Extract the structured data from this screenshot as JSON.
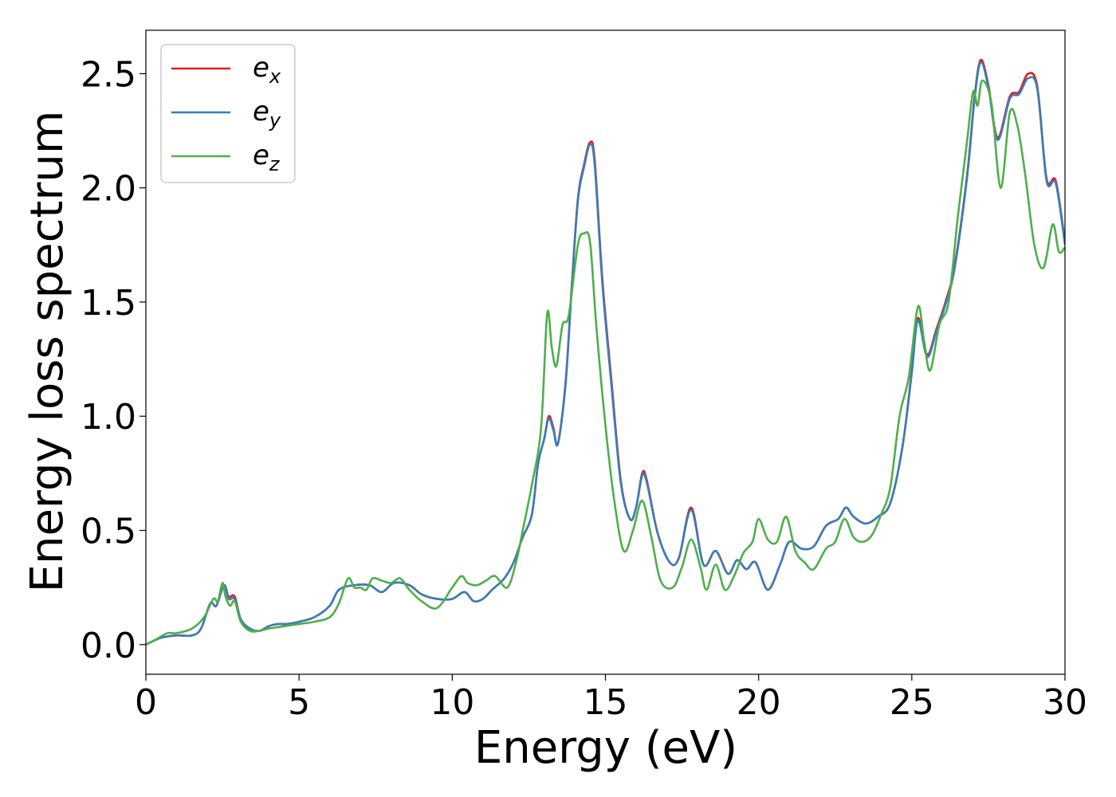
{
  "chart_data": {
    "type": "line",
    "xlabel": "Energy (eV)",
    "ylabel": "Energy loss spectrum",
    "xlim": [
      0,
      30
    ],
    "ylim": [
      -0.13,
      2.69
    ],
    "xticks": [
      0,
      5,
      10,
      15,
      20,
      25,
      30
    ],
    "yticks": [
      0.0,
      0.5,
      1.0,
      1.5,
      2.0,
      2.5
    ],
    "xtick_labels": [
      "0",
      "5",
      "10",
      "15",
      "20",
      "25",
      "30"
    ],
    "ytick_labels": [
      "0.0",
      "0.5",
      "1.0",
      "1.5",
      "2.0",
      "2.5"
    ],
    "grid": false,
    "legend_position": "top-left",
    "series": [
      {
        "name": "e_x",
        "legend_base": "e",
        "legend_sub": "x",
        "color": "#e41a1c",
        "points": [
          [
            0,
            0
          ],
          [
            0.5,
            0.03
          ],
          [
            1,
            0.04
          ],
          [
            1.5,
            0.04
          ],
          [
            1.8,
            0.07
          ],
          [
            2.1,
            0.18
          ],
          [
            2.3,
            0.17
          ],
          [
            2.55,
            0.26
          ],
          [
            2.7,
            0.21
          ],
          [
            2.9,
            0.21
          ],
          [
            3.1,
            0.11
          ],
          [
            3.4,
            0.07
          ],
          [
            3.7,
            0.06
          ],
          [
            4,
            0.08
          ],
          [
            4.3,
            0.09
          ],
          [
            4.6,
            0.09
          ],
          [
            5,
            0.1
          ],
          [
            5.5,
            0.12
          ],
          [
            6,
            0.17
          ],
          [
            6.3,
            0.24
          ],
          [
            6.8,
            0.26
          ],
          [
            7.3,
            0.26
          ],
          [
            7.7,
            0.23
          ],
          [
            8.1,
            0.27
          ],
          [
            8.6,
            0.26
          ],
          [
            9,
            0.22
          ],
          [
            9.5,
            0.2
          ],
          [
            10,
            0.2
          ],
          [
            10.4,
            0.23
          ],
          [
            10.7,
            0.19
          ],
          [
            11,
            0.2
          ],
          [
            11.3,
            0.24
          ],
          [
            11.7,
            0.29
          ],
          [
            12,
            0.36
          ],
          [
            12.3,
            0.47
          ],
          [
            12.6,
            0.57
          ],
          [
            12.8,
            0.79
          ],
          [
            13,
            0.9
          ],
          [
            13.15,
            1.0
          ],
          [
            13.3,
            0.95
          ],
          [
            13.45,
            0.88
          ],
          [
            13.7,
            1.15
          ],
          [
            13.9,
            1.57
          ],
          [
            14.1,
            1.95
          ],
          [
            14.3,
            2.1
          ],
          [
            14.5,
            2.2
          ],
          [
            14.65,
            2.12
          ],
          [
            14.9,
            1.6
          ],
          [
            15.2,
            1.15
          ],
          [
            15.5,
            0.72
          ],
          [
            15.8,
            0.55
          ],
          [
            16,
            0.6
          ],
          [
            16.2,
            0.75
          ],
          [
            16.35,
            0.72
          ],
          [
            16.7,
            0.49
          ],
          [
            17.1,
            0.36
          ],
          [
            17.4,
            0.38
          ],
          [
            17.8,
            0.6
          ],
          [
            18.2,
            0.35
          ],
          [
            18.6,
            0.41
          ],
          [
            19,
            0.31
          ],
          [
            19.3,
            0.37
          ],
          [
            19.6,
            0.33
          ],
          [
            19.9,
            0.36
          ],
          [
            20.3,
            0.24
          ],
          [
            20.7,
            0.35
          ],
          [
            21,
            0.45
          ],
          [
            21.4,
            0.42
          ],
          [
            21.8,
            0.43
          ],
          [
            22.2,
            0.52
          ],
          [
            22.6,
            0.55
          ],
          [
            22.85,
            0.6
          ],
          [
            23.1,
            0.56
          ],
          [
            23.5,
            0.53
          ],
          [
            23.9,
            0.56
          ],
          [
            24.3,
            0.62
          ],
          [
            24.7,
            0.87
          ],
          [
            25,
            1.2
          ],
          [
            25.2,
            1.43
          ],
          [
            25.5,
            1.27
          ],
          [
            25.8,
            1.38
          ],
          [
            26.1,
            1.5
          ],
          [
            26.4,
            1.66
          ],
          [
            26.8,
            2.05
          ],
          [
            27.05,
            2.4
          ],
          [
            27.25,
            2.56
          ],
          [
            27.5,
            2.45
          ],
          [
            27.8,
            2.22
          ],
          [
            28.2,
            2.4
          ],
          [
            28.5,
            2.42
          ],
          [
            28.8,
            2.5
          ],
          [
            29.1,
            2.44
          ],
          [
            29.4,
            2.04
          ],
          [
            29.7,
            2.03
          ],
          [
            30,
            1.76
          ]
        ]
      },
      {
        "name": "e_y",
        "legend_base": "e",
        "legend_sub": "y",
        "color": "#377eb8",
        "points": [
          [
            0,
            0
          ],
          [
            0.5,
            0.03
          ],
          [
            1,
            0.04
          ],
          [
            1.5,
            0.04
          ],
          [
            1.8,
            0.07
          ],
          [
            2.1,
            0.18
          ],
          [
            2.3,
            0.17
          ],
          [
            2.55,
            0.26
          ],
          [
            2.7,
            0.2
          ],
          [
            2.9,
            0.2
          ],
          [
            3.1,
            0.11
          ],
          [
            3.4,
            0.07
          ],
          [
            3.7,
            0.06
          ],
          [
            4,
            0.08
          ],
          [
            4.3,
            0.09
          ],
          [
            4.6,
            0.09
          ],
          [
            5,
            0.1
          ],
          [
            5.5,
            0.12
          ],
          [
            6,
            0.17
          ],
          [
            6.3,
            0.24
          ],
          [
            6.8,
            0.26
          ],
          [
            7.3,
            0.26
          ],
          [
            7.7,
            0.23
          ],
          [
            8.1,
            0.27
          ],
          [
            8.6,
            0.26
          ],
          [
            9,
            0.22
          ],
          [
            9.5,
            0.2
          ],
          [
            10,
            0.2
          ],
          [
            10.4,
            0.23
          ],
          [
            10.7,
            0.19
          ],
          [
            11,
            0.2
          ],
          [
            11.3,
            0.24
          ],
          [
            11.7,
            0.29
          ],
          [
            12,
            0.36
          ],
          [
            12.3,
            0.47
          ],
          [
            12.6,
            0.57
          ],
          [
            12.8,
            0.79
          ],
          [
            13,
            0.9
          ],
          [
            13.15,
            0.99
          ],
          [
            13.3,
            0.94
          ],
          [
            13.45,
            0.88
          ],
          [
            13.7,
            1.14
          ],
          [
            13.9,
            1.56
          ],
          [
            14.1,
            1.94
          ],
          [
            14.3,
            2.09
          ],
          [
            14.5,
            2.19
          ],
          [
            14.65,
            2.1
          ],
          [
            14.9,
            1.58
          ],
          [
            15.2,
            1.13
          ],
          [
            15.5,
            0.71
          ],
          [
            15.8,
            0.55
          ],
          [
            16,
            0.6
          ],
          [
            16.2,
            0.74
          ],
          [
            16.35,
            0.71
          ],
          [
            16.7,
            0.49
          ],
          [
            17.1,
            0.36
          ],
          [
            17.4,
            0.38
          ],
          [
            17.8,
            0.59
          ],
          [
            18.2,
            0.35
          ],
          [
            18.6,
            0.41
          ],
          [
            19,
            0.31
          ],
          [
            19.3,
            0.37
          ],
          [
            19.6,
            0.33
          ],
          [
            19.9,
            0.36
          ],
          [
            20.3,
            0.24
          ],
          [
            20.7,
            0.35
          ],
          [
            21,
            0.45
          ],
          [
            21.4,
            0.42
          ],
          [
            21.8,
            0.43
          ],
          [
            22.2,
            0.52
          ],
          [
            22.6,
            0.55
          ],
          [
            22.85,
            0.6
          ],
          [
            23.1,
            0.56
          ],
          [
            23.5,
            0.53
          ],
          [
            23.9,
            0.56
          ],
          [
            24.3,
            0.62
          ],
          [
            24.7,
            0.87
          ],
          [
            25,
            1.19
          ],
          [
            25.2,
            1.42
          ],
          [
            25.5,
            1.26
          ],
          [
            25.8,
            1.37
          ],
          [
            26.1,
            1.49
          ],
          [
            26.4,
            1.65
          ],
          [
            26.8,
            2.04
          ],
          [
            27.05,
            2.39
          ],
          [
            27.25,
            2.55
          ],
          [
            27.5,
            2.44
          ],
          [
            27.8,
            2.21
          ],
          [
            28.2,
            2.39
          ],
          [
            28.5,
            2.41
          ],
          [
            28.8,
            2.48
          ],
          [
            29.1,
            2.43
          ],
          [
            29.4,
            2.03
          ],
          [
            29.7,
            2.02
          ],
          [
            30,
            1.75
          ]
        ]
      },
      {
        "name": "e_z",
        "legend_base": "e",
        "legend_sub": "z",
        "color": "#4daf4a",
        "points": [
          [
            0,
            0
          ],
          [
            0.3,
            0.02
          ],
          [
            0.7,
            0.05
          ],
          [
            1,
            0.05
          ],
          [
            1.5,
            0.07
          ],
          [
            1.9,
            0.12
          ],
          [
            2.2,
            0.2
          ],
          [
            2.35,
            0.19
          ],
          [
            2.5,
            0.27
          ],
          [
            2.6,
            0.21
          ],
          [
            2.75,
            0.17
          ],
          [
            2.9,
            0.19
          ],
          [
            3.1,
            0.1
          ],
          [
            3.4,
            0.06
          ],
          [
            3.7,
            0.06
          ],
          [
            4,
            0.07
          ],
          [
            4.5,
            0.08
          ],
          [
            5,
            0.09
          ],
          [
            5.5,
            0.1
          ],
          [
            6,
            0.12
          ],
          [
            6.3,
            0.18
          ],
          [
            6.6,
            0.29
          ],
          [
            6.8,
            0.25
          ],
          [
            7,
            0.25
          ],
          [
            7.2,
            0.24
          ],
          [
            7.4,
            0.29
          ],
          [
            7.7,
            0.28
          ],
          [
            8,
            0.27
          ],
          [
            8.3,
            0.29
          ],
          [
            8.6,
            0.24
          ],
          [
            9,
            0.19
          ],
          [
            9.5,
            0.16
          ],
          [
            10,
            0.25
          ],
          [
            10.3,
            0.3
          ],
          [
            10.5,
            0.27
          ],
          [
            10.8,
            0.26
          ],
          [
            11.1,
            0.28
          ],
          [
            11.4,
            0.3
          ],
          [
            11.8,
            0.25
          ],
          [
            12.1,
            0.37
          ],
          [
            12.3,
            0.5
          ],
          [
            12.6,
            0.7
          ],
          [
            12.9,
            0.95
          ],
          [
            13.1,
            1.45
          ],
          [
            13.25,
            1.3
          ],
          [
            13.4,
            1.22
          ],
          [
            13.6,
            1.4
          ],
          [
            13.8,
            1.44
          ],
          [
            14.1,
            1.75
          ],
          [
            14.3,
            1.8
          ],
          [
            14.5,
            1.76
          ],
          [
            14.7,
            1.4
          ],
          [
            15,
            0.96
          ],
          [
            15.3,
            0.62
          ],
          [
            15.6,
            0.41
          ],
          [
            15.9,
            0.5
          ],
          [
            16.2,
            0.63
          ],
          [
            16.5,
            0.47
          ],
          [
            16.8,
            0.28
          ],
          [
            17.2,
            0.25
          ],
          [
            17.5,
            0.34
          ],
          [
            17.8,
            0.46
          ],
          [
            18.1,
            0.34
          ],
          [
            18.3,
            0.24
          ],
          [
            18.6,
            0.35
          ],
          [
            18.9,
            0.24
          ],
          [
            19.2,
            0.3
          ],
          [
            19.5,
            0.4
          ],
          [
            19.8,
            0.45
          ],
          [
            20,
            0.55
          ],
          [
            20.3,
            0.46
          ],
          [
            20.6,
            0.45
          ],
          [
            20.9,
            0.56
          ],
          [
            21.2,
            0.41
          ],
          [
            21.5,
            0.36
          ],
          [
            21.8,
            0.33
          ],
          [
            22.2,
            0.42
          ],
          [
            22.5,
            0.45
          ],
          [
            22.8,
            0.55
          ],
          [
            23.1,
            0.47
          ],
          [
            23.4,
            0.45
          ],
          [
            23.7,
            0.48
          ],
          [
            24,
            0.57
          ],
          [
            24.3,
            0.69
          ],
          [
            24.6,
            1.0
          ],
          [
            24.9,
            1.17
          ],
          [
            25.2,
            1.48
          ],
          [
            25.4,
            1.33
          ],
          [
            25.6,
            1.2
          ],
          [
            25.9,
            1.4
          ],
          [
            26.2,
            1.5
          ],
          [
            26.5,
            1.87
          ],
          [
            26.8,
            2.2
          ],
          [
            27,
            2.42
          ],
          [
            27.15,
            2.36
          ],
          [
            27.3,
            2.47
          ],
          [
            27.6,
            2.37
          ],
          [
            27.9,
            2.0
          ],
          [
            28.2,
            2.33
          ],
          [
            28.45,
            2.27
          ],
          [
            28.7,
            2.06
          ],
          [
            29,
            1.75
          ],
          [
            29.3,
            1.65
          ],
          [
            29.6,
            1.84
          ],
          [
            29.8,
            1.72
          ],
          [
            30,
            1.74
          ]
        ]
      }
    ]
  }
}
